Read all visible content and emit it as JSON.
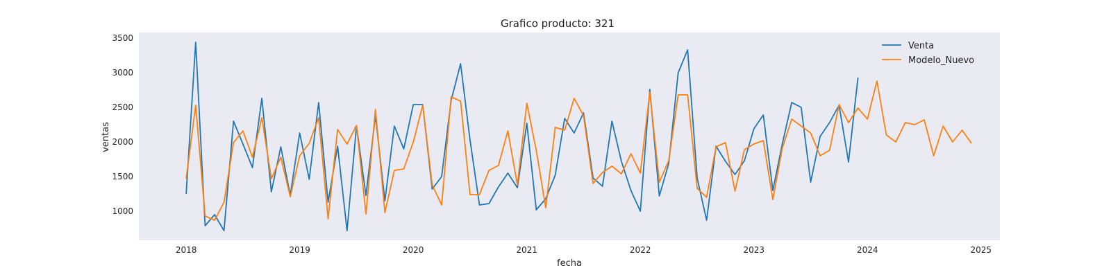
{
  "chart_data": {
    "type": "line",
    "title": "Grafico producto: 321",
    "xlabel": "fecha",
    "ylabel": "ventas",
    "x_axis_type": "date",
    "xlim": [
      "2017-08-01",
      "2025-03-01"
    ],
    "ylim": [
      580,
      3580
    ],
    "x_ticks": [
      {
        "date": "2018-01-01",
        "label": "2018"
      },
      {
        "date": "2019-01-01",
        "label": "2019"
      },
      {
        "date": "2020-01-01",
        "label": "2020"
      },
      {
        "date": "2021-01-01",
        "label": "2021"
      },
      {
        "date": "2022-01-01",
        "label": "2022"
      },
      {
        "date": "2023-01-01",
        "label": "2023"
      },
      {
        "date": "2024-01-01",
        "label": "2024"
      },
      {
        "date": "2025-01-01",
        "label": "2025"
      }
    ],
    "y_ticks": [
      1000,
      1500,
      2000,
      2500,
      3000,
      3500
    ],
    "grid": false,
    "background": "#eaeaf2",
    "legend_position": "top-right",
    "series": [
      {
        "name": "Venta",
        "color": "#1f77b4",
        "x": [
          "2018-01",
          "2018-02",
          "2018-03",
          "2018-04",
          "2018-05",
          "2018-06",
          "2018-07",
          "2018-08",
          "2018-09",
          "2018-10",
          "2018-11",
          "2018-12",
          "2019-01",
          "2019-02",
          "2019-03",
          "2019-04",
          "2019-05",
          "2019-06",
          "2019-07",
          "2019-08",
          "2019-09",
          "2019-10",
          "2019-11",
          "2019-12",
          "2020-01",
          "2020-02",
          "2020-03",
          "2020-04",
          "2020-05",
          "2020-06",
          "2020-07",
          "2020-08",
          "2020-09",
          "2020-10",
          "2020-11",
          "2020-12",
          "2021-01",
          "2021-02",
          "2021-03",
          "2021-04",
          "2021-05",
          "2021-06",
          "2021-07",
          "2021-08",
          "2021-09",
          "2021-10",
          "2021-11",
          "2021-12",
          "2022-01",
          "2022-02",
          "2022-03",
          "2022-04",
          "2022-05",
          "2022-06",
          "2022-07",
          "2022-08",
          "2022-09",
          "2022-10",
          "2022-11",
          "2022-12",
          "2023-01",
          "2023-02",
          "2023-03",
          "2023-04",
          "2023-05",
          "2023-06",
          "2023-07",
          "2023-08",
          "2023-09",
          "2023-10",
          "2023-11",
          "2023-12"
        ],
        "values": [
          1250,
          3440,
          790,
          950,
          720,
          2300,
          1970,
          1630,
          2630,
          1280,
          1930,
          1230,
          2130,
          1460,
          2570,
          1130,
          1940,
          720,
          2230,
          1230,
          2380,
          1150,
          2230,
          1900,
          2540,
          2540,
          1320,
          1500,
          2600,
          3130,
          2030,
          1090,
          1110,
          1350,
          1550,
          1340,
          2270,
          1020,
          1180,
          1520,
          2340,
          2130,
          2420,
          1480,
          1360,
          2300,
          1720,
          1300,
          1000,
          2760,
          1220,
          1690,
          3000,
          3330,
          1480,
          870,
          1940,
          1720,
          1530,
          1730,
          2190,
          2390,
          1300,
          1970,
          2570,
          2500,
          1420,
          2080,
          2280,
          2530,
          1710,
          2930
        ]
      },
      {
        "name": "Modelo_Nuevo",
        "color": "#ff7f0e",
        "x": [
          "2018-01",
          "2018-02",
          "2018-03",
          "2018-04",
          "2018-05",
          "2018-06",
          "2018-07",
          "2018-08",
          "2018-09",
          "2018-10",
          "2018-11",
          "2018-12",
          "2019-01",
          "2019-02",
          "2019-03",
          "2019-04",
          "2019-05",
          "2019-06",
          "2019-07",
          "2019-08",
          "2019-09",
          "2019-10",
          "2019-11",
          "2019-12",
          "2020-01",
          "2020-02",
          "2020-03",
          "2020-04",
          "2020-05",
          "2020-06",
          "2020-07",
          "2020-08",
          "2020-09",
          "2020-10",
          "2020-11",
          "2020-12",
          "2021-01",
          "2021-02",
          "2021-03",
          "2021-04",
          "2021-05",
          "2021-06",
          "2021-07",
          "2021-08",
          "2021-09",
          "2021-10",
          "2021-11",
          "2021-12",
          "2022-01",
          "2022-02",
          "2022-03",
          "2022-04",
          "2022-05",
          "2022-06",
          "2022-07",
          "2022-08",
          "2022-09",
          "2022-10",
          "2022-11",
          "2022-12",
          "2023-01",
          "2023-02",
          "2023-03",
          "2023-04",
          "2023-05",
          "2023-06",
          "2023-07",
          "2023-08",
          "2023-09",
          "2023-10",
          "2023-11",
          "2023-12",
          "2024-01",
          "2024-02",
          "2024-03",
          "2024-04",
          "2024-05",
          "2024-06",
          "2024-07",
          "2024-08",
          "2024-09",
          "2024-10",
          "2024-11",
          "2024-12"
        ],
        "values": [
          1470,
          2530,
          930,
          870,
          1130,
          1990,
          2160,
          1780,
          2350,
          1470,
          1780,
          1210,
          1800,
          1980,
          2350,
          890,
          2180,
          1970,
          2240,
          960,
          2470,
          980,
          1590,
          1610,
          2000,
          2530,
          1380,
          1090,
          2650,
          2590,
          1240,
          1240,
          1590,
          1660,
          2160,
          1380,
          2560,
          1880,
          1050,
          2210,
          2170,
          2630,
          2380,
          1400,
          1560,
          1650,
          1540,
          1830,
          1550,
          2720,
          1420,
          1730,
          2680,
          2680,
          1330,
          1200,
          1930,
          1990,
          1290,
          1890,
          1970,
          2020,
          1170,
          1910,
          2330,
          2230,
          2130,
          1800,
          1880,
          2540,
          2280,
          2490,
          2330,
          2880,
          2100,
          2000,
          2280,
          2250,
          2320,
          1800,
          2230,
          2000,
          2170,
          1980
        ]
      }
    ]
  }
}
